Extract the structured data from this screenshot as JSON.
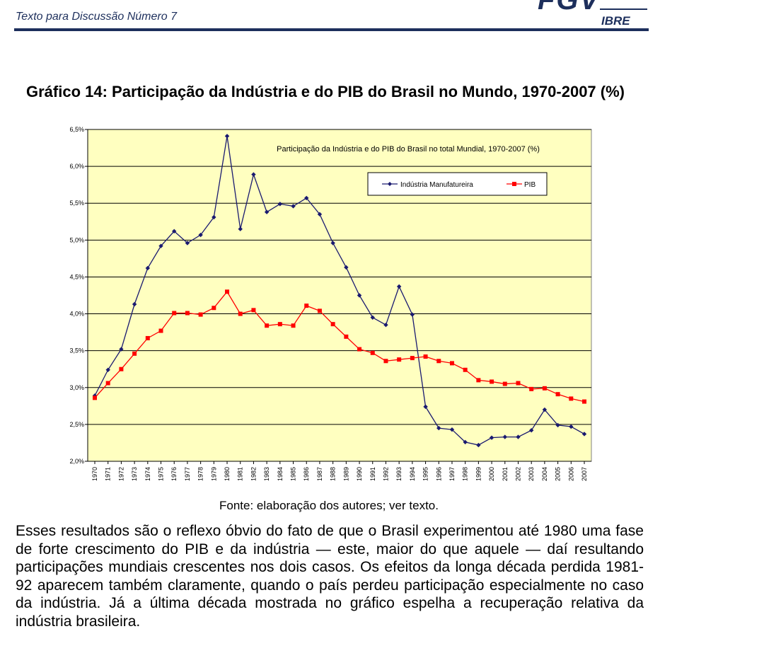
{
  "header": {
    "series_title": "Texto para Discussão Número 7",
    "logo_fgv": "FGV",
    "logo_ibre": "IBRE"
  },
  "figure": {
    "title": "Gráfico 14: Participação da Indústria e do PIB do Brasil no Mundo, 1970-2007 (%)",
    "source": "Fonte: elaboração dos autores; ver texto."
  },
  "chart_data": {
    "type": "line",
    "title": "Participação da Indústria e do PIB do Brasil no total Mundial, 1970-2007 (%)",
    "x": [
      1970,
      1971,
      1972,
      1973,
      1974,
      1975,
      1976,
      1977,
      1978,
      1979,
      1980,
      1981,
      1982,
      1983,
      1984,
      1985,
      1986,
      1987,
      1988,
      1989,
      1990,
      1991,
      1992,
      1993,
      1994,
      1995,
      1996,
      1997,
      1998,
      1999,
      2000,
      2001,
      2002,
      2003,
      2004,
      2005,
      2006,
      2007
    ],
    "ylim": [
      2.0,
      6.5
    ],
    "yticks": [
      "2,0%",
      "2,5%",
      "3,0%",
      "3,5%",
      "4,0%",
      "4,5%",
      "5,0%",
      "5,5%",
      "6,0%",
      "6,5%"
    ],
    "ytick_values": [
      2.0,
      2.5,
      3.0,
      3.5,
      4.0,
      4.5,
      5.0,
      5.5,
      6.0,
      6.5
    ],
    "grid": true,
    "legend_position": "top-right",
    "background": "#ffffc0",
    "series": [
      {
        "name": "Indústria Manufatureira",
        "color": "#1a1a70",
        "marker": "diamond",
        "values": [
          2.89,
          3.24,
          3.52,
          4.13,
          4.62,
          4.92,
          5.12,
          4.96,
          5.07,
          5.31,
          6.41,
          5.15,
          5.89,
          5.38,
          5.49,
          5.46,
          5.57,
          5.35,
          4.96,
          4.63,
          4.25,
          3.95,
          3.85,
          4.37,
          3.99,
          2.74,
          2.45,
          2.43,
          2.26,
          2.22,
          2.32,
          2.33,
          2.33,
          2.42,
          2.7,
          2.49,
          2.47,
          2.37
        ]
      },
      {
        "name": "PIB",
        "color": "#ff0000",
        "marker": "square",
        "values": [
          2.86,
          3.06,
          3.25,
          3.46,
          3.67,
          3.77,
          4.01,
          4.01,
          3.99,
          4.08,
          4.3,
          4.0,
          4.05,
          3.84,
          3.86,
          3.84,
          4.11,
          4.04,
          3.86,
          3.69,
          3.52,
          3.47,
          3.36,
          3.38,
          3.4,
          3.42,
          3.36,
          3.33,
          3.24,
          3.1,
          3.08,
          3.05,
          3.06,
          2.98,
          2.99,
          2.91,
          2.85,
          2.81
        ]
      }
    ]
  },
  "body": {
    "paragraph": "Esses resultados são o reflexo óbvio do fato de que o Brasil experimentou até 1980 uma fase de forte crescimento do PIB e da indústria — este, maior do que aquele — daí resultando participações mundiais crescentes nos dois casos. Os efeitos da longa década perdida 1981-92 aparecem também claramente, quando o país perdeu participação especialmente no caso da indústria. Já a última década mostrada no gráfico espelha a recuperação relativa da indústria brasileira."
  }
}
